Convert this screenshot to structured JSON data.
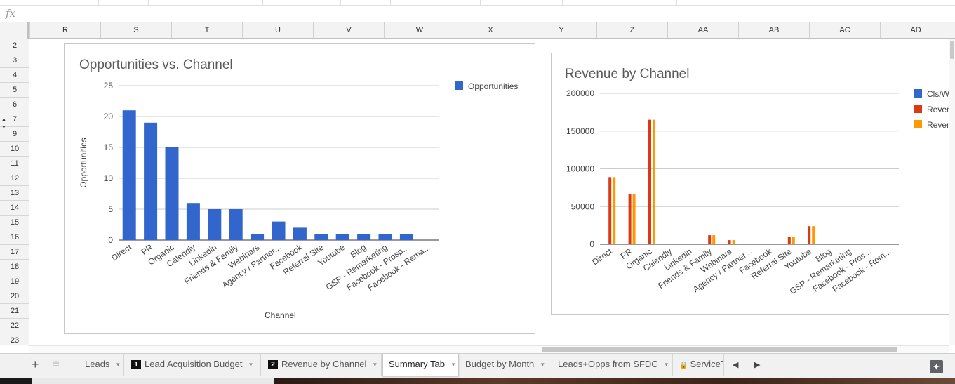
{
  "formula_bar": {
    "fx_label": "fx",
    "value": ""
  },
  "columns": [
    "R",
    "S",
    "T",
    "U",
    "V",
    "W",
    "X",
    "Y",
    "Z",
    "AA",
    "AB",
    "AC",
    "AD"
  ],
  "rows": [
    "2",
    "3",
    "4",
    "5",
    "6",
    "7",
    "9",
    "10",
    "11",
    "12",
    "13",
    "14",
    "15",
    "16",
    "17",
    "18",
    "19",
    "20",
    "21",
    "22",
    "23"
  ],
  "row_group_arrows": {
    "up": "▲",
    "down": "▼"
  },
  "colors": {
    "blue": "#3366cc",
    "red": "#dc3912",
    "orange": "#ff9900",
    "active_tab_bg": "#ffffff"
  },
  "chart_data": [
    {
      "type": "bar",
      "title": "Opportunities vs. Channel",
      "xlabel": "Channel",
      "ylabel": "Opportunities",
      "ylim": [
        0,
        25
      ],
      "yticks": [
        "0",
        "5",
        "10",
        "15",
        "20",
        "25"
      ],
      "grid": true,
      "legend": "top-right",
      "categories": [
        "Direct",
        "PR",
        "Organic",
        "Calendly",
        "Linkedin",
        "Friends & Family",
        "Webinars",
        "Agency / Partner...",
        "Facebook",
        "Referral Site",
        "Youtube",
        "Blog",
        "GSP - Remarketing",
        "Facebook - Prosp...",
        "Facebook - Rema..."
      ],
      "series": [
        {
          "name": "Opportunities",
          "color": "#3366cc",
          "values": [
            21,
            19,
            15,
            6,
            5,
            5,
            1,
            3,
            2,
            1,
            1,
            1,
            1,
            1,
            null
          ]
        }
      ]
    },
    {
      "type": "bar",
      "title": "Revenue by Channel",
      "xlabel": "",
      "ylabel": "",
      "ylim": [
        0,
        200000
      ],
      "yticks": [
        "0",
        "50000",
        "100000",
        "150000",
        "200000"
      ],
      "grid": true,
      "legend": "right",
      "categories": [
        "Direct",
        "PR",
        "Organic",
        "Calendly",
        "Linkedin",
        "Friends & Family",
        "Webinars",
        "Agency / Partner...",
        "Facebook",
        "Referral Site",
        "Youtube",
        "Blog",
        "GSP - Remarketing",
        "Facebook - Pros...",
        "Facebook - Rem..."
      ],
      "series": [
        {
          "name": "Cls/W",
          "color": "#3366cc",
          "values": [
            0,
            0,
            0,
            0,
            0,
            0,
            0,
            0,
            0,
            0,
            0,
            0,
            0,
            0,
            0
          ]
        },
        {
          "name": "Reven",
          "color": "#dc3912",
          "values": [
            89000,
            66000,
            165000,
            0,
            0,
            12000,
            5500,
            0,
            0,
            10000,
            24000,
            0,
            0,
            0,
            0
          ]
        },
        {
          "name": "Reven",
          "color": "#ff9900",
          "values": [
            89000,
            66000,
            165000,
            0,
            0,
            12000,
            5500,
            0,
            0,
            10000,
            24000,
            0,
            0,
            0,
            0
          ]
        }
      ]
    }
  ],
  "tabs": [
    {
      "label": "Leads",
      "num": ""
    },
    {
      "label": "Lead Acquisition Budget",
      "num": "1"
    },
    {
      "label": "Revenue by Channel",
      "num": "2"
    },
    {
      "label": "Summary Tab",
      "num": "",
      "active": true
    },
    {
      "label": "Budget by Month",
      "num": ""
    },
    {
      "label": "Leads+Opps from SFDC",
      "num": ""
    },
    {
      "label": "ServiceT",
      "num": "",
      "locked": true
    }
  ],
  "tabbar_buttons": {
    "add": "+",
    "all_sheets": "≡",
    "prev": "◀",
    "next": "▶",
    "explore": "✦"
  }
}
